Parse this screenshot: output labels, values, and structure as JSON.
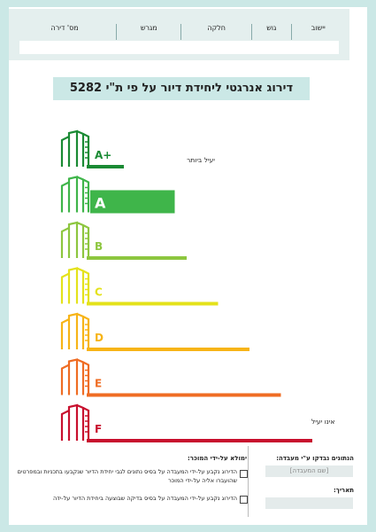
{
  "header": {
    "columns": [
      "יישוב",
      "גוש",
      "חלקה",
      "מגרש",
      "מס' דירה"
    ]
  },
  "title": "דירוג אנרגטי ליחידת דיור על פי ת\"י 5282",
  "chart_data": {
    "type": "bar",
    "categories": [
      "A+",
      "A",
      "B",
      "C",
      "D",
      "E",
      "F"
    ],
    "colors": [
      "#1a8a34",
      "#3fb54a",
      "#8dc63f",
      "#e4e21b",
      "#f7b417",
      "#ef6c23",
      "#c8102e"
    ],
    "label_top": "יעיל ביותר",
    "label_bottom": "אינו יעיל"
  },
  "footer": {
    "left_title": "הנתונים נבדקו ע\"י מעבדה:",
    "lab_name": "[שם המעבדה]",
    "date_label": "תאריך:",
    "right_title": "ימולא על-ידי המוכר:",
    "option1": "הדירוג נקבע על-ידי המעבדה על בסיס נתונים לגבי יחידת הדיור שנקבעו בתכניות ובמפרטים שהועברו אליה על-ידי המוכר",
    "option2": "הדירוג נקבע על-ידי המעבדה על בסיס בדיקה שבוצעה ביחידת הדיור על-ידה"
  }
}
